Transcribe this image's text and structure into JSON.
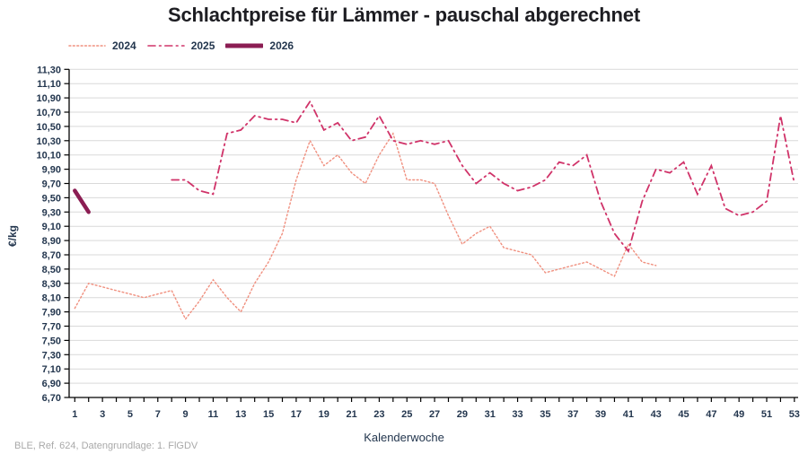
{
  "page": {
    "title": "Schlachtpreise für Lämmer - pauschal abgerechnet",
    "footer": "BLE, Ref. 624, Datengrundlage: 1. FlGDV"
  },
  "colors": {
    "series_2024": "#f0907f",
    "series_2025": "#d03369",
    "series_2026": "#8b1d53",
    "axis_text": "#23364e",
    "title_text": "#1d1d22",
    "grid": "#d9d9d9",
    "axis_line": "#000000",
    "footer_text": "#a9a9a9"
  },
  "chart_data": {
    "type": "line",
    "title": "Schlachtpreise für Lämmer - pauschal abgerechnet",
    "xlabel": "Kalenderwoche",
    "ylabel": "€/kg",
    "xlim": [
      1,
      53
    ],
    "ylim": [
      6.7,
      11.3
    ],
    "y_step": 0.2,
    "grid": true,
    "legend_position": "top-left",
    "x_tick_labels": [
      "1",
      "3",
      "5",
      "7",
      "9",
      "11",
      "13",
      "15",
      "17",
      "19",
      "21",
      "23",
      "25",
      "27",
      "29",
      "31",
      "33",
      "35",
      "37",
      "39",
      "41",
      "43",
      "45",
      "47",
      "49",
      "51",
      "53"
    ],
    "y_tick_labels": [
      "11,30",
      "11,10",
      "10,90",
      "10,70",
      "10,50",
      "10,30",
      "10,10",
      "9,90",
      "9,70",
      "9,50",
      "9,30",
      "9,10",
      "8,90",
      "8,70",
      "8,50",
      "8,30",
      "8,10",
      "7,90",
      "7,70",
      "7,50",
      "7,30",
      "7,10",
      "6,90",
      "6,70"
    ],
    "series": [
      {
        "name": "2024",
        "style": "dotted",
        "width": 1.4,
        "color": "#f0907f",
        "start_week": 1,
        "values": [
          7.95,
          8.3,
          8.25,
          8.2,
          8.15,
          8.1,
          8.15,
          8.2,
          7.8,
          8.05,
          8.35,
          8.1,
          7.9,
          8.3,
          8.6,
          9.0,
          9.75,
          10.3,
          9.95,
          10.1,
          9.85,
          9.7,
          10.1,
          10.4,
          9.75,
          9.75,
          9.7,
          9.25,
          8.85,
          9.0,
          9.1,
          8.8,
          8.75,
          8.7,
          8.45,
          8.5,
          8.55,
          8.6,
          8.5,
          8.4,
          8.85,
          8.6,
          8.55
        ]
      },
      {
        "name": "2025",
        "style": "dashdot",
        "width": 1.8,
        "color": "#d03369",
        "start_week": 8,
        "values": [
          9.75,
          9.75,
          9.6,
          9.55,
          10.4,
          10.45,
          10.65,
          10.6,
          10.6,
          10.55,
          10.85,
          10.45,
          10.55,
          10.3,
          10.35,
          10.65,
          10.3,
          10.25,
          10.3,
          10.25,
          10.3,
          9.95,
          9.7,
          9.85,
          9.7,
          9.6,
          9.65,
          9.75,
          10.0,
          9.95,
          10.1,
          9.45,
          9.0,
          8.75,
          9.45,
          9.9,
          9.85,
          10.0,
          9.55,
          9.95,
          9.35,
          9.25,
          9.3,
          9.45,
          10.65,
          9.7
        ]
      },
      {
        "name": "2026",
        "style": "solid",
        "width": 4.5,
        "color": "#8b1d53",
        "start_week": 1,
        "values": [
          9.6,
          9.3
        ]
      }
    ]
  }
}
